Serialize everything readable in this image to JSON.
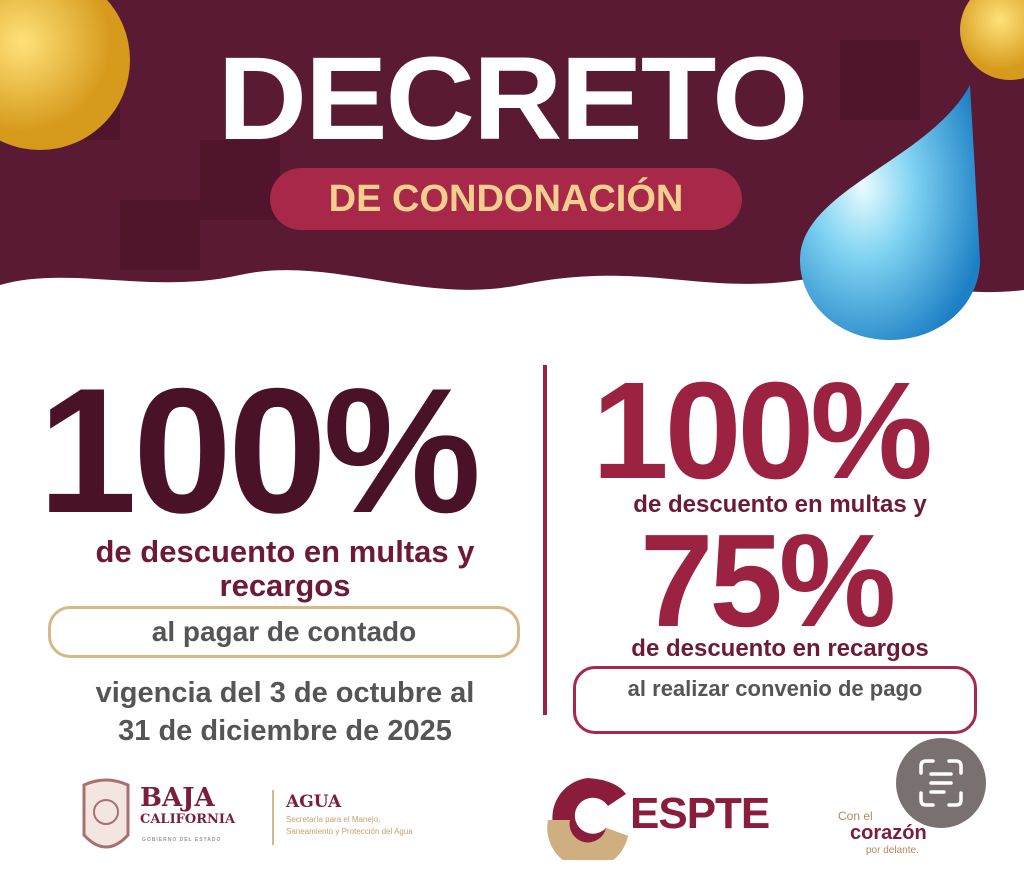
{
  "header": {
    "title": "DECRETO",
    "subtitle": "DE CONDONACIÓN"
  },
  "left": {
    "percent": "100%",
    "description": "de descuento en multas y recargos",
    "condition": "al pagar de contado",
    "validity_line1": "vigencia del 3 de octubre al",
    "validity_line2": "31 de diciembre de 2025"
  },
  "right": {
    "percent_fines": "100%",
    "fines_text": "de descuento en multas y",
    "percent_surcharges": "75%",
    "surcharges_text": "de descuento en recargos",
    "condition": "al realizar convenio de pago"
  },
  "logos": {
    "baja_line1": "BAJA",
    "baja_line2": "CALIFORNIA",
    "baja_sub": "GOBIERNO DEL ESTADO",
    "agua": "AGUA",
    "agua_sub1": "Secretaría para el Manejo,",
    "agua_sub2": "Saneamiento y Protección del Agua",
    "cespte": "ESPTE",
    "corazon_pre": "Con el",
    "corazon": "corazón",
    "corazon_post": "por delante."
  },
  "colors": {
    "maroon": "#5b1a33",
    "accent": "#9b2240",
    "gold": "#f2cf8e"
  },
  "overlay": {
    "icon": "live-text-icon"
  }
}
